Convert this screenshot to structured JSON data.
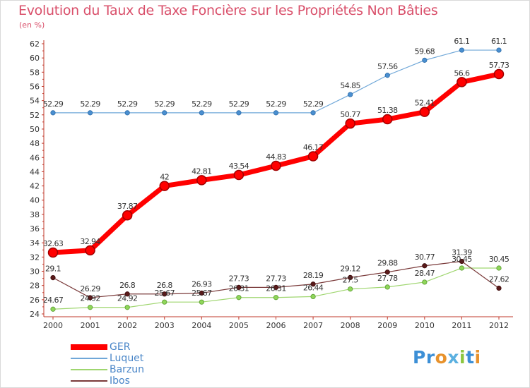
{
  "title": "Evolution du Taux de Taxe Foncière sur les Propriétés Non Bâties",
  "subtitle": "(en %)",
  "logo": {
    "text": "Proxiti",
    "letters": [
      "P",
      "r",
      "o",
      "x",
      "i",
      "t",
      "i"
    ],
    "colors": [
      "#3c8fd6",
      "#3c8fd6",
      "#e8922c",
      "#5bb0e0",
      "#8cc63f",
      "#3c8fd6",
      "#e8922c"
    ]
  },
  "colors": {
    "title": "#d94f6a",
    "axis_text": "#333333",
    "legend_text": "#4a86c8"
  },
  "chart_data": {
    "type": "line",
    "x": [
      "2000",
      "2001",
      "2002",
      "2003",
      "2004",
      "2005",
      "2006",
      "2007",
      "2008",
      "2009",
      "2010",
      "2011",
      "2012"
    ],
    "ylim": [
      24,
      62
    ],
    "yticks": [
      24,
      26,
      28,
      30,
      32,
      34,
      36,
      38,
      40,
      42,
      44,
      46,
      48,
      50,
      52,
      54,
      56,
      58,
      60,
      62
    ],
    "grid": false,
    "legend_position": "bottom-left",
    "series": [
      {
        "name": "GER",
        "color": "#ff0000",
        "values": [
          32.63,
          32.94,
          37.87,
          42,
          42.81,
          43.54,
          44.83,
          46.17,
          50.77,
          51.38,
          52.41,
          56.6,
          57.73
        ],
        "labels": [
          "32.63",
          "32.94",
          "37.87",
          "42",
          "42.81",
          "43.54",
          "44.83",
          "46.17",
          "50.77",
          "51.38",
          "52.41",
          "56.6",
          "57.73"
        ]
      },
      {
        "name": "Luquet",
        "color": "#6fa7d8",
        "values": [
          52.29,
          52.29,
          52.29,
          52.29,
          52.29,
          52.29,
          52.29,
          52.29,
          54.85,
          57.56,
          59.68,
          61.1,
          61.1
        ],
        "labels": [
          "52.29",
          "52.29",
          "52.29",
          "52.29",
          "52.29",
          "52.29",
          "52.29",
          "52.29",
          "54.85",
          "57.56",
          "59.68",
          "61.1",
          "61.1"
        ]
      },
      {
        "name": "Barzun",
        "color": "#9fd66f",
        "values": [
          24.67,
          24.92,
          24.92,
          25.67,
          25.67,
          26.31,
          26.31,
          26.44,
          27.5,
          27.78,
          28.47,
          30.45,
          30.45
        ],
        "labels": [
          "24.67",
          "24.92",
          "24.92",
          "25.67",
          "25.67",
          "26.31",
          "26.31",
          "26.44",
          "27.5",
          "27.78",
          "28.47",
          "30.45",
          "30.45"
        ]
      },
      {
        "name": "Ibos",
        "color": "#7a3a3a",
        "values": [
          29.1,
          26.29,
          26.8,
          26.8,
          26.93,
          27.73,
          27.73,
          28.19,
          29.12,
          29.88,
          30.77,
          31.39,
          27.62
        ],
        "labels": [
          "29.1",
          "26.29",
          "26.8",
          "26.8",
          "26.93",
          "27.73",
          "27.73",
          "28.19",
          "29.12",
          "29.88",
          "30.77",
          "31.39",
          "27.62"
        ]
      }
    ]
  }
}
